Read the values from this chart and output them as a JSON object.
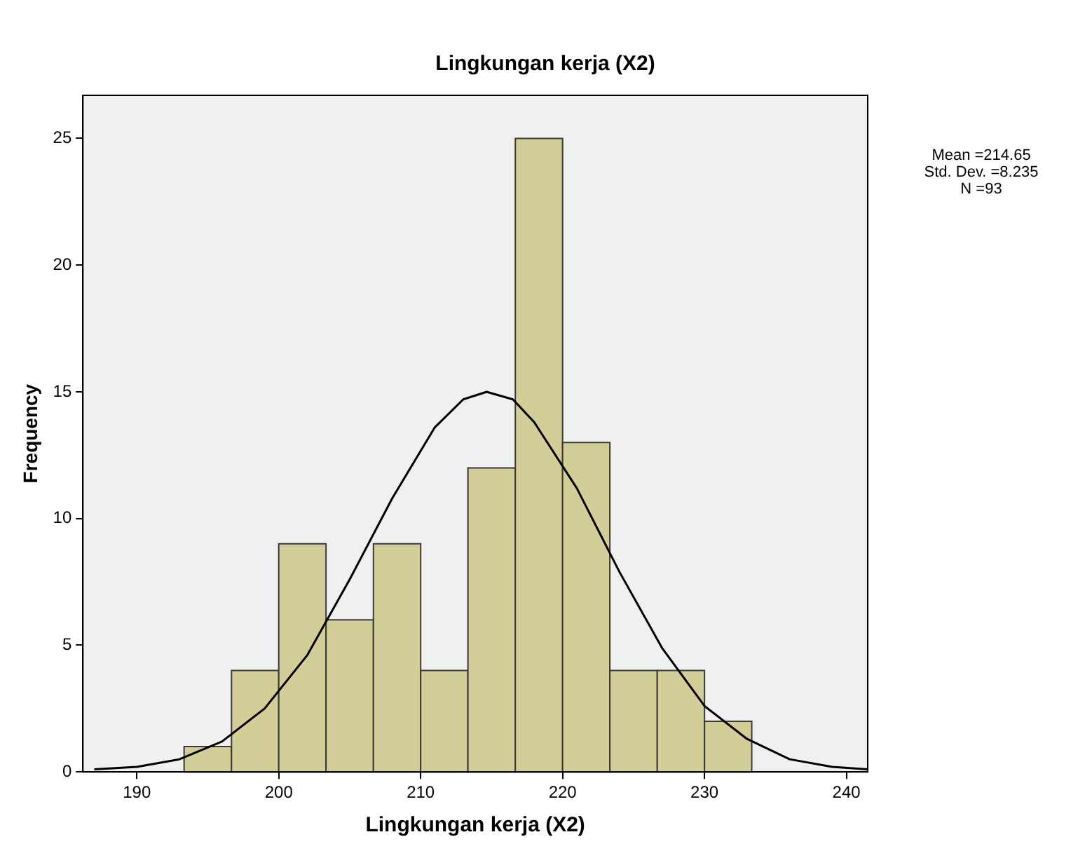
{
  "chart_data": {
    "type": "histogram",
    "title": "Lingkungan kerja (X2)",
    "xlabel": "Lingkungan kerja (X2)",
    "ylabel": "Frequency",
    "bins": [
      193.33,
      196.67,
      200,
      203.33,
      206.67,
      210,
      213.33,
      216.67,
      220,
      223.33,
      226.67,
      230,
      233.33
    ],
    "values": [
      1,
      4,
      9,
      6,
      9,
      4,
      12,
      25,
      13,
      4,
      4,
      2
    ],
    "color": "#d3ce97",
    "series": [
      {
        "type": "line",
        "color": "#000000",
        "x": [
          187,
          190,
          193,
          196,
          199,
          202,
          205,
          208,
          211,
          213,
          214.65,
          216.5,
          218,
          221,
          224,
          227,
          230,
          233,
          236,
          239,
          241.5
        ],
        "values": [
          0.1,
          0.2,
          0.5,
          1.2,
          2.5,
          4.6,
          7.6,
          10.8,
          13.6,
          14.7,
          15,
          14.7,
          13.8,
          11.2,
          7.9,
          4.9,
          2.6,
          1.3,
          0.5,
          0.2,
          0.1
        ]
      }
    ],
    "xlim": [
      186.2,
      241.5
    ],
    "xticks": [
      190,
      200,
      210,
      220,
      230,
      240
    ],
    "ylim": [
      0,
      26.7
    ],
    "yticks": [
      0,
      5,
      10,
      15,
      20,
      25
    ],
    "grid": false,
    "legend": false,
    "marker": "none",
    "line_style": "solid",
    "annotations": [
      "Mean =214.65",
      "Std. Dev. =8.235",
      "N =93"
    ]
  }
}
